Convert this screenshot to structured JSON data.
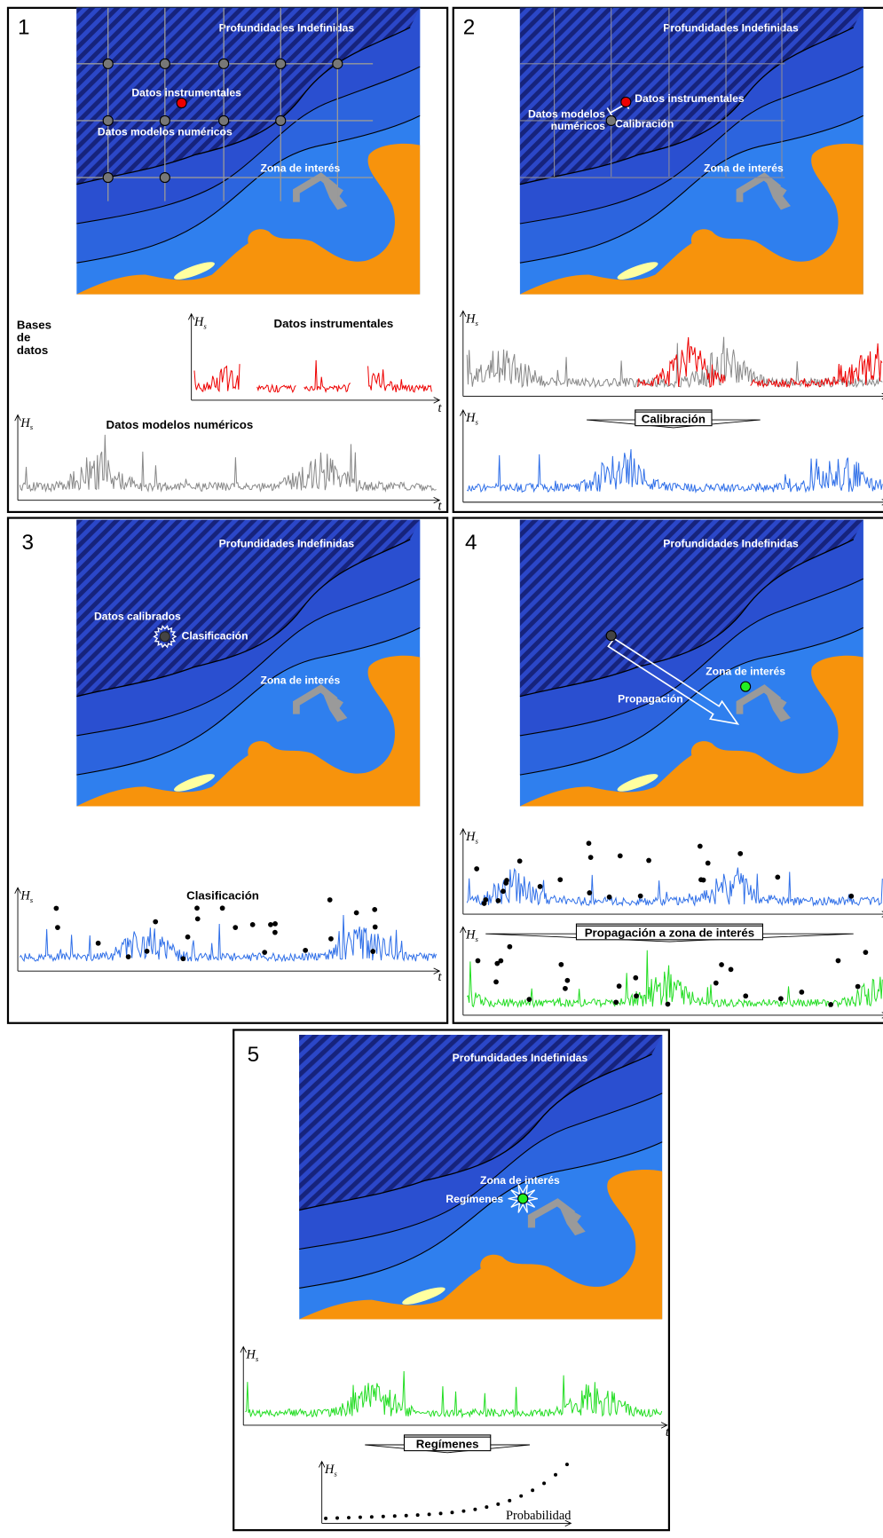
{
  "axes": {
    "hs": "H",
    "hs_sub": "s",
    "t": "t",
    "probability": "Probabilidad"
  },
  "panels": [
    {
      "number": "1",
      "deep_water": "Profundidades Indefinidas",
      "instrumental": "Datos instrumentales",
      "numerical": "Datos modelos numéricos",
      "site": "Zona de interés",
      "databases": [
        "Bases",
        "de",
        "datos"
      ],
      "chart_instrumental": "Datos instrumentales",
      "chart_numerical": "Datos modelos numéricos"
    },
    {
      "number": "2",
      "deep_water": "Profundidades Indefinidas",
      "instrumental": "Datos instrumentales",
      "numerical": [
        "Datos modelos",
        "numéricos"
      ],
      "calibration": "Calibración",
      "site": "Zona de interés",
      "process": "Calibración"
    },
    {
      "number": "3",
      "deep_water": "Profundidades Indefinidas",
      "calibrated": "Datos calibrados",
      "classification": "Clasificación",
      "site": "Zona de interés",
      "chart_title": "Clasificación"
    },
    {
      "number": "4",
      "deep_water": "Profundidades Indefinidas",
      "site": "Zona de interés",
      "propagation": "Propagación",
      "process": "Propagación a zona de interés"
    },
    {
      "number": "5",
      "deep_water": "Profundidades Indefinidas",
      "site": "Zona de interés",
      "regimes": "Regímenes",
      "process": "Regímenes"
    }
  ]
}
